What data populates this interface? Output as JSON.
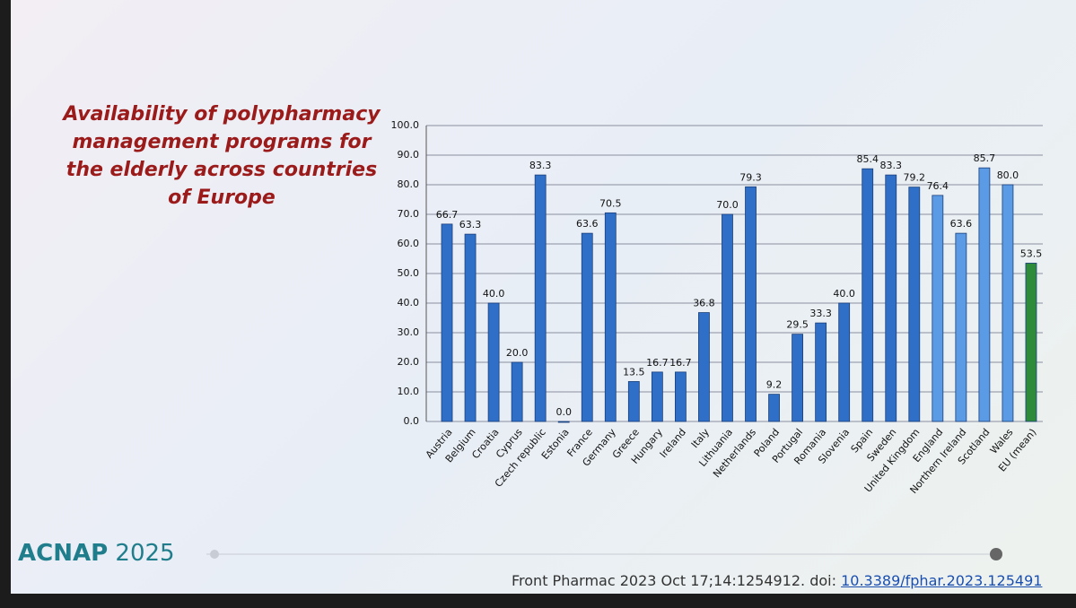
{
  "chart_data": {
    "type": "bar",
    "title": "Availability of polypharmacy management programs for the elderly across countries of Europe",
    "categories": [
      "Austria",
      "Belgium",
      "Croatia",
      "Cyprus",
      "Czech republic",
      "Estonia",
      "France",
      "Germany",
      "Greece",
      "Hungary",
      "Ireland",
      "Italy",
      "Lithuania",
      "Netherlands",
      "Poland",
      "Portugal",
      "Romania",
      "Slovenia",
      "Spain",
      "Sweden",
      "United Kingdom",
      "England",
      "Northern Ireland",
      "Scotland",
      "Wales",
      "EU (mean)"
    ],
    "values": [
      66.7,
      63.3,
      40.0,
      20.0,
      83.3,
      0.0,
      63.6,
      70.5,
      13.5,
      16.7,
      16.7,
      36.8,
      70.0,
      79.3,
      9.2,
      29.5,
      33.3,
      40.0,
      85.4,
      83.3,
      79.2,
      76.4,
      63.6,
      85.7,
      80.0,
      53.5
    ],
    "value_labels": [
      "66.7",
      "63.3",
      "40.0",
      "20.0",
      "83.3",
      "0.0",
      "63.6",
      "70.5",
      "13.5",
      "16.7",
      "16.7",
      "36.8",
      "70.0",
      "79.3",
      "9.2",
      "29.5",
      "33.3",
      "40.0",
      "85.4",
      "83.3",
      "79.2",
      "76.4",
      "63.6",
      "85.7",
      "80.0",
      "53.5"
    ],
    "colors": [
      "#2f6fc8",
      "#2f6fc8",
      "#2f6fc8",
      "#2f6fc8",
      "#2f6fc8",
      "#2f6fc8",
      "#2f6fc8",
      "#2f6fc8",
      "#2f6fc8",
      "#2f6fc8",
      "#2f6fc8",
      "#2f6fc8",
      "#2f6fc8",
      "#2f6fc8",
      "#2f6fc8",
      "#2f6fc8",
      "#2f6fc8",
      "#2f6fc8",
      "#2f6fc8",
      "#2f6fc8",
      "#2f6fc8",
      "#5b9be6",
      "#5b9be6",
      "#5b9be6",
      "#5b9be6",
      "#2e8b3a"
    ],
    "ylim": [
      0,
      100
    ],
    "yticks": [
      {
        "value": 0,
        "label": "0.0"
      },
      {
        "value": 10,
        "label": "10.0"
      },
      {
        "value": 20,
        "label": "20.0"
      },
      {
        "value": 30,
        "label": "30.0"
      },
      {
        "value": 40,
        "label": "40.0"
      },
      {
        "value": 50,
        "label": "50.0"
      },
      {
        "value": 60,
        "label": "60.0"
      },
      {
        "value": 70,
        "label": "70.0"
      },
      {
        "value": 80,
        "label": "80.0"
      },
      {
        "value": 90,
        "label": "90.0"
      },
      {
        "value": 100,
        "label": "100.0"
      }
    ],
    "grid": true
  },
  "slide": {
    "logo_name": "ACNAP",
    "logo_year": "2025",
    "citation": "Front Pharmac 2023 Oct 17;14:1254912. doi:",
    "citation_link": "10.3389/fphar.2023.125491"
  }
}
